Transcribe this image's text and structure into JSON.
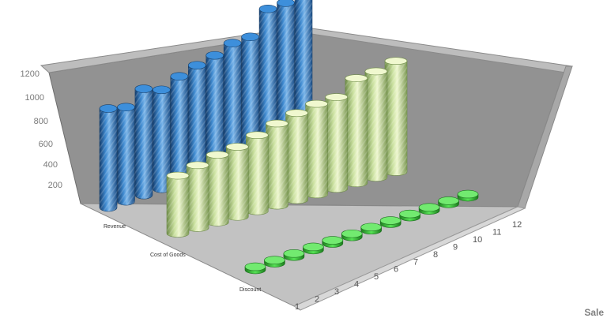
{
  "chart_data": {
    "type": "bar",
    "style": "3d-cylinder",
    "x": [
      "1",
      "2",
      "3",
      "4",
      "5",
      "6",
      "7",
      "8",
      "9",
      "10",
      "11",
      "12"
    ],
    "ylim": [
      0,
      1200
    ],
    "yticks": [
      "200",
      "400",
      "600",
      "800",
      "1000",
      "1200"
    ],
    "grid": false,
    "series": [
      {
        "name": "Revenue",
        "color": "#2f77bd",
        "values": [
          820,
          780,
          880,
          820,
          880,
          920,
          950,
          1000,
          1000,
          1180,
          1180,
          1270
        ]
      },
      {
        "name": "Cost of Goods",
        "color": "#bcd891",
        "values": [
          480,
          520,
          560,
          580,
          630,
          680,
          720,
          750,
          760,
          870,
          880,
          920
        ]
      },
      {
        "name": "Discount",
        "color": "#39c33a",
        "values": [
          0,
          0,
          0,
          0,
          0,
          0,
          0,
          0,
          0,
          0,
          0,
          0
        ]
      }
    ],
    "corner_label": "Sale"
  }
}
